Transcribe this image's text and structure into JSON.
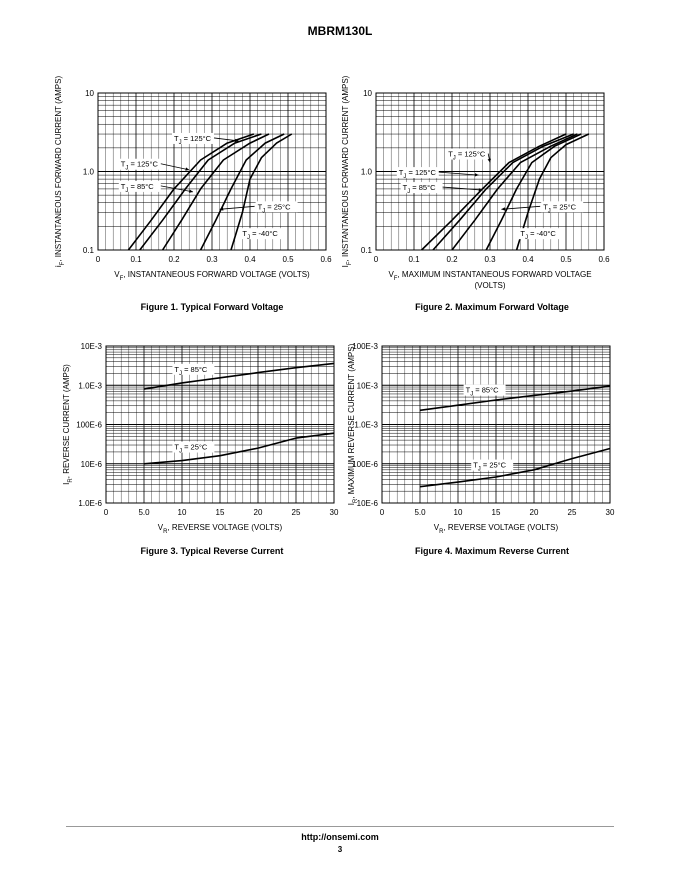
{
  "header": {
    "title": "MBRM130L"
  },
  "footer": {
    "url": "http://onsemi.com",
    "page": "3"
  },
  "chart_data": [
    {
      "id": "fig1",
      "type": "line",
      "caption": "Figure 1. Typical Forward Voltage",
      "xlabel": "VF, INSTANTANEOUS FORWARD VOLTAGE (VOLTS)",
      "ylabel": "iF, INSTANTANEOUS FORWARD CURRENT (AMPS)",
      "xlim": [
        0,
        0.6
      ],
      "ylim": [
        0.1,
        10
      ],
      "yscale": "log",
      "grid": true,
      "xticks": [
        0,
        0.1,
        0.2,
        0.3,
        0.4,
        0.5,
        0.6
      ],
      "xtick_labels": [
        "0",
        "0.1",
        "0.2",
        "0.3",
        "0.4",
        "0.5",
        "0.6"
      ],
      "yticks": [
        0.1,
        1,
        10
      ],
      "ytick_labels": [
        "0.1",
        "1.0",
        "10"
      ],
      "series": [
        {
          "x": [
            0.08,
            0.14,
            0.2,
            0.27,
            0.34,
            0.41
          ],
          "y": [
            0.1,
            0.24,
            0.6,
            1.4,
            2.3,
            3
          ]
        },
        {
          "x": [
            0.11,
            0.17,
            0.23,
            0.29,
            0.36,
            0.43
          ],
          "y": [
            0.1,
            0.24,
            0.6,
            1.4,
            2.3,
            3
          ]
        },
        {
          "x": [
            0.17,
            0.22,
            0.27,
            0.33,
            0.4,
            0.45
          ],
          "y": [
            0.1,
            0.24,
            0.6,
            1.4,
            2.3,
            3
          ]
        },
        {
          "x": [
            0.27,
            0.31,
            0.35,
            0.39,
            0.44,
            0.49
          ],
          "y": [
            0.1,
            0.24,
            0.6,
            1.4,
            2.3,
            3
          ]
        },
        {
          "x": [
            0.35,
            0.38,
            0.4,
            0.43,
            0.47,
            0.51
          ],
          "y": [
            0.1,
            0.3,
            0.8,
            1.5,
            2.3,
            3
          ]
        }
      ],
      "annotations": [
        {
          "label": "TJ = 125°C",
          "x": 0.2,
          "y": 2.45,
          "ax": 0.37,
          "ay": 2.45
        },
        {
          "label": "TJ = 125°C",
          "x": 0.06,
          "y": 1.15,
          "ax": 0.24,
          "ay": 1.05
        },
        {
          "label": "TJ = 85°C",
          "x": 0.06,
          "y": 0.6,
          "ax": 0.25,
          "ay": 0.55
        },
        {
          "label": "TJ = 25°C",
          "x": 0.42,
          "y": 0.33,
          "ax": 0.32,
          "ay": 0.33
        },
        {
          "label": "TJ = -40°C",
          "x": 0.38,
          "y": 0.15,
          "ax": 0.38,
          "ay": 0.15
        }
      ]
    },
    {
      "id": "fig2",
      "type": "line",
      "caption": "Figure 2. Maximum Forward Voltage",
      "xlabel": "VF, MAXIMUM INSTANTANEOUS FORWARD VOLTAGE",
      "xlabel2": "(VOLTS)",
      "ylabel": "IF, INSTANTANEOUS FORWARD CURRENT (AMPS)",
      "xlim": [
        0,
        0.6
      ],
      "ylim": [
        0.1,
        10
      ],
      "yscale": "log",
      "grid": true,
      "xticks": [
        0,
        0.1,
        0.2,
        0.3,
        0.4,
        0.5,
        0.6
      ],
      "xtick_labels": [
        "0",
        "0.1",
        "0.2",
        "0.3",
        "0.4",
        "0.5",
        "0.6"
      ],
      "yticks": [
        0.1,
        1,
        10
      ],
      "ytick_labels": [
        "0.1",
        "1.0",
        "10"
      ],
      "series": [
        {
          "x": [
            0.12,
            0.2,
            0.28,
            0.35,
            0.43,
            0.5
          ],
          "y": [
            0.1,
            0.24,
            0.6,
            1.3,
            2.1,
            3
          ]
        },
        {
          "x": [
            0.15,
            0.22,
            0.29,
            0.36,
            0.44,
            0.52
          ],
          "y": [
            0.1,
            0.24,
            0.6,
            1.3,
            2.1,
            3
          ]
        },
        {
          "x": [
            0.2,
            0.26,
            0.32,
            0.38,
            0.46,
            0.53
          ],
          "y": [
            0.1,
            0.24,
            0.6,
            1.3,
            2.1,
            3
          ]
        },
        {
          "x": [
            0.29,
            0.33,
            0.37,
            0.41,
            0.47,
            0.54
          ],
          "y": [
            0.1,
            0.24,
            0.6,
            1.3,
            2.1,
            3
          ]
        },
        {
          "x": [
            0.37,
            0.4,
            0.43,
            0.46,
            0.5,
            0.56
          ],
          "y": [
            0.1,
            0.3,
            0.8,
            1.5,
            2.2,
            3
          ]
        }
      ],
      "annotations": [
        {
          "label": "TJ = 125°C",
          "x": 0.19,
          "y": 1.55,
          "ax": 0.3,
          "ay": 1.3
        },
        {
          "label": "TJ = 125°C",
          "x": 0.06,
          "y": 0.9,
          "ax": 0.27,
          "ay": 0.9
        },
        {
          "label": "TJ = 85°C",
          "x": 0.07,
          "y": 0.58,
          "ax": 0.28,
          "ay": 0.58
        },
        {
          "label": "TJ = 25°C",
          "x": 0.44,
          "y": 0.33,
          "ax": 0.33,
          "ay": 0.33
        },
        {
          "label": "TJ = -40°C",
          "x": 0.38,
          "y": 0.15,
          "ax": 0.38,
          "ay": 0.15
        }
      ]
    },
    {
      "id": "fig3",
      "type": "line",
      "caption": "Figure 3. Typical Reverse Current",
      "xlabel": "VR, REVERSE VOLTAGE (VOLTS)",
      "ylabel": "IR, REVERSE CURRENT (AMPS)",
      "xlim": [
        0,
        30
      ],
      "ylim": [
        1e-06,
        0.01
      ],
      "yscale": "log",
      "grid": true,
      "xticks": [
        0,
        5,
        10,
        15,
        20,
        25,
        30
      ],
      "xtick_labels": [
        "0",
        "5.0",
        "10",
        "15",
        "20",
        "25",
        "30"
      ],
      "yticks": [
        1e-06,
        1e-05,
        0.0001,
        0.001,
        0.01
      ],
      "ytick_labels": [
        "1.0E-6",
        "10E-6",
        "100E-6",
        "1.0E-3",
        "10E-3"
      ],
      "series": [
        {
          "x": [
            5,
            10,
            15,
            20,
            25,
            30
          ],
          "y": [
            0.0008,
            0.00115,
            0.00155,
            0.0021,
            0.0028,
            0.0036
          ]
        },
        {
          "x": [
            5,
            10,
            15,
            20,
            25,
            30
          ],
          "y": [
            1e-05,
            1.2e-05,
            1.6e-05,
            2.5e-05,
            4.5e-05,
            6e-05
          ]
        }
      ],
      "annotations": [
        {
          "label": "TJ = 85°C",
          "x": 9,
          "y": 0.0022,
          "ax": 9,
          "ay": 0.0022
        },
        {
          "label": "TJ = 25°C",
          "x": 9,
          "y": 2.3e-05,
          "ax": 9,
          "ay": 2.3e-05
        }
      ]
    },
    {
      "id": "fig4",
      "type": "line",
      "caption": "Figure 4. Maximum Reverse Current",
      "xlabel": "VR, REVERSE VOLTAGE (VOLTS)",
      "ylabel": "IR, MAXIMUM REVERSE CURRENT (AMPS)",
      "xlim": [
        0,
        30
      ],
      "ylim": [
        1e-05,
        0.1
      ],
      "yscale": "log",
      "grid": true,
      "xticks": [
        0,
        5,
        10,
        15,
        20,
        25,
        30
      ],
      "xtick_labels": [
        "0",
        "5.0",
        "10",
        "15",
        "20",
        "25",
        "30"
      ],
      "yticks": [
        1e-05,
        0.0001,
        0.001,
        0.01,
        0.1
      ],
      "ytick_labels": [
        "10E-6",
        "100E-6",
        "1.0E-3",
        "10E-3",
        "100E-3"
      ],
      "series": [
        {
          "x": [
            5,
            10,
            15,
            20,
            25,
            30
          ],
          "y": [
            0.0023,
            0.0031,
            0.0042,
            0.0055,
            0.0071,
            0.0095
          ]
        },
        {
          "x": [
            5,
            10,
            15,
            20,
            25,
            30
          ],
          "y": [
            2.6e-05,
            3.4e-05,
            4.6e-05,
            7e-05,
            0.000135,
            0.000245
          ]
        }
      ],
      "annotations": [
        {
          "label": "TJ = 85°C",
          "x": 11,
          "y": 0.0065,
          "ax": 11,
          "ay": 0.0065
        },
        {
          "label": "TJ = 25°C",
          "x": 12,
          "y": 8e-05,
          "ax": 12,
          "ay": 8e-05
        }
      ]
    }
  ]
}
